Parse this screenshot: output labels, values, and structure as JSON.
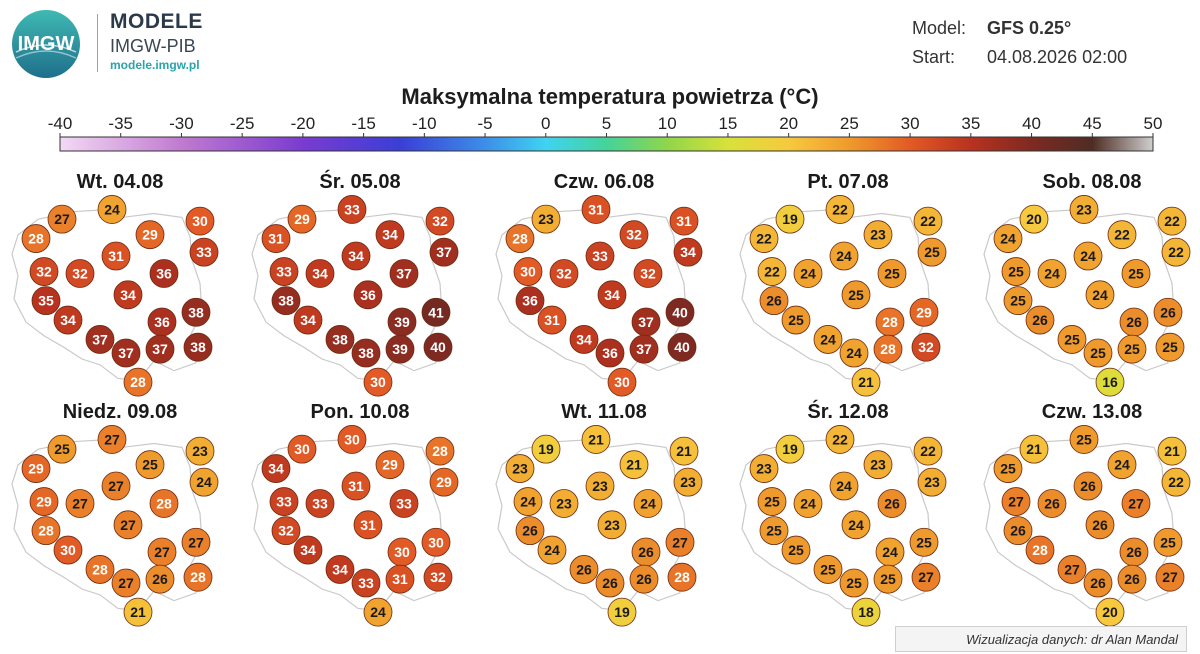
{
  "header": {
    "logo_text": "IMGW",
    "brand_title": "MODELE",
    "brand_subtitle": "IMGW-PIB",
    "brand_url": "modele.imgw.pl",
    "model_label": "Model:",
    "model_value": "GFS 0.25°",
    "start_label": "Start:",
    "start_value": "04.08.2026 02:00"
  },
  "title": "Maksymalna temperatura powietrza (°C)",
  "colorbar": {
    "ticks": [
      "-40",
      "-35",
      "-30",
      "-25",
      "-20",
      "-15",
      "-10",
      "-5",
      "0",
      "5",
      "10",
      "15",
      "20",
      "25",
      "30",
      "35",
      "40",
      "45",
      "50"
    ],
    "range": [
      -40,
      50
    ],
    "stops": [
      {
        "value": -40,
        "color": "#f3d9f5"
      },
      {
        "value": -30,
        "color": "#c07ad0"
      },
      {
        "value": -20,
        "color": "#7a3bd0"
      },
      {
        "value": -12,
        "color": "#3a3fd6"
      },
      {
        "value": -5,
        "color": "#3d8ee8"
      },
      {
        "value": 0,
        "color": "#3fd3f0"
      },
      {
        "value": 5,
        "color": "#45d39a"
      },
      {
        "value": 10,
        "color": "#8fd64a"
      },
      {
        "value": 15,
        "color": "#d8e13a"
      },
      {
        "value": 20,
        "color": "#f7c93e"
      },
      {
        "value": 25,
        "color": "#ef9a2c"
      },
      {
        "value": 30,
        "color": "#e25a25"
      },
      {
        "value": 35,
        "color": "#b8321f"
      },
      {
        "value": 40,
        "color": "#7e2a22"
      },
      {
        "value": 45,
        "color": "#4e2c24"
      },
      {
        "value": 50,
        "color": "#cfcfcf"
      }
    ]
  },
  "days": [
    {
      "label": "Wt. 04.08",
      "temps": [
        28,
        27,
        24,
        29,
        30,
        33,
        32,
        32,
        31,
        35,
        34,
        34,
        36,
        36,
        38,
        37,
        37,
        37,
        38,
        28
      ]
    },
    {
      "label": "Śr. 05.08",
      "temps": [
        31,
        29,
        33,
        34,
        32,
        37,
        33,
        34,
        34,
        38,
        34,
        36,
        37,
        39,
        41,
        38,
        38,
        39,
        40,
        30
      ]
    },
    {
      "label": "Czw. 06.08",
      "temps": [
        28,
        23,
        31,
        32,
        31,
        34,
        30,
        32,
        33,
        36,
        31,
        34,
        32,
        37,
        40,
        34,
        36,
        37,
        40,
        30
      ]
    },
    {
      "label": "Pt. 07.08",
      "temps": [
        22,
        19,
        22,
        23,
        22,
        25,
        22,
        24,
        24,
        26,
        25,
        25,
        25,
        28,
        29,
        24,
        24,
        28,
        32,
        21
      ]
    },
    {
      "label": "Sob. 08.08",
      "temps": [
        24,
        20,
        23,
        22,
        22,
        22,
        25,
        24,
        24,
        25,
        26,
        24,
        25,
        26,
        26,
        25,
        25,
        25,
        25,
        16
      ]
    },
    {
      "label": "Niedz. 09.08",
      "temps": [
        29,
        25,
        27,
        25,
        23,
        24,
        29,
        27,
        27,
        28,
        30,
        27,
        28,
        27,
        27,
        28,
        27,
        26,
        28,
        21
      ]
    },
    {
      "label": "Pon. 10.08",
      "temps": [
        34,
        30,
        30,
        29,
        28,
        29,
        33,
        33,
        31,
        32,
        34,
        31,
        33,
        30,
        30,
        34,
        33,
        31,
        32,
        24
      ]
    },
    {
      "label": "Wt. 11.08",
      "temps": [
        23,
        19,
        21,
        21,
        21,
        23,
        24,
        23,
        23,
        26,
        24,
        23,
        24,
        26,
        27,
        26,
        26,
        26,
        28,
        19
      ]
    },
    {
      "label": "Śr. 12.08",
      "temps": [
        23,
        19,
        22,
        23,
        22,
        23,
        25,
        24,
        24,
        25,
        25,
        24,
        26,
        24,
        25,
        25,
        25,
        25,
        27,
        18
      ]
    },
    {
      "label": "Czw. 13.08",
      "temps": [
        25,
        21,
        25,
        24,
        21,
        22,
        27,
        26,
        26,
        26,
        28,
        26,
        27,
        26,
        25,
        27,
        26,
        26,
        27,
        20
      ]
    }
  ],
  "credit": "Wizualizacja danych: dr Alan Mandal"
}
